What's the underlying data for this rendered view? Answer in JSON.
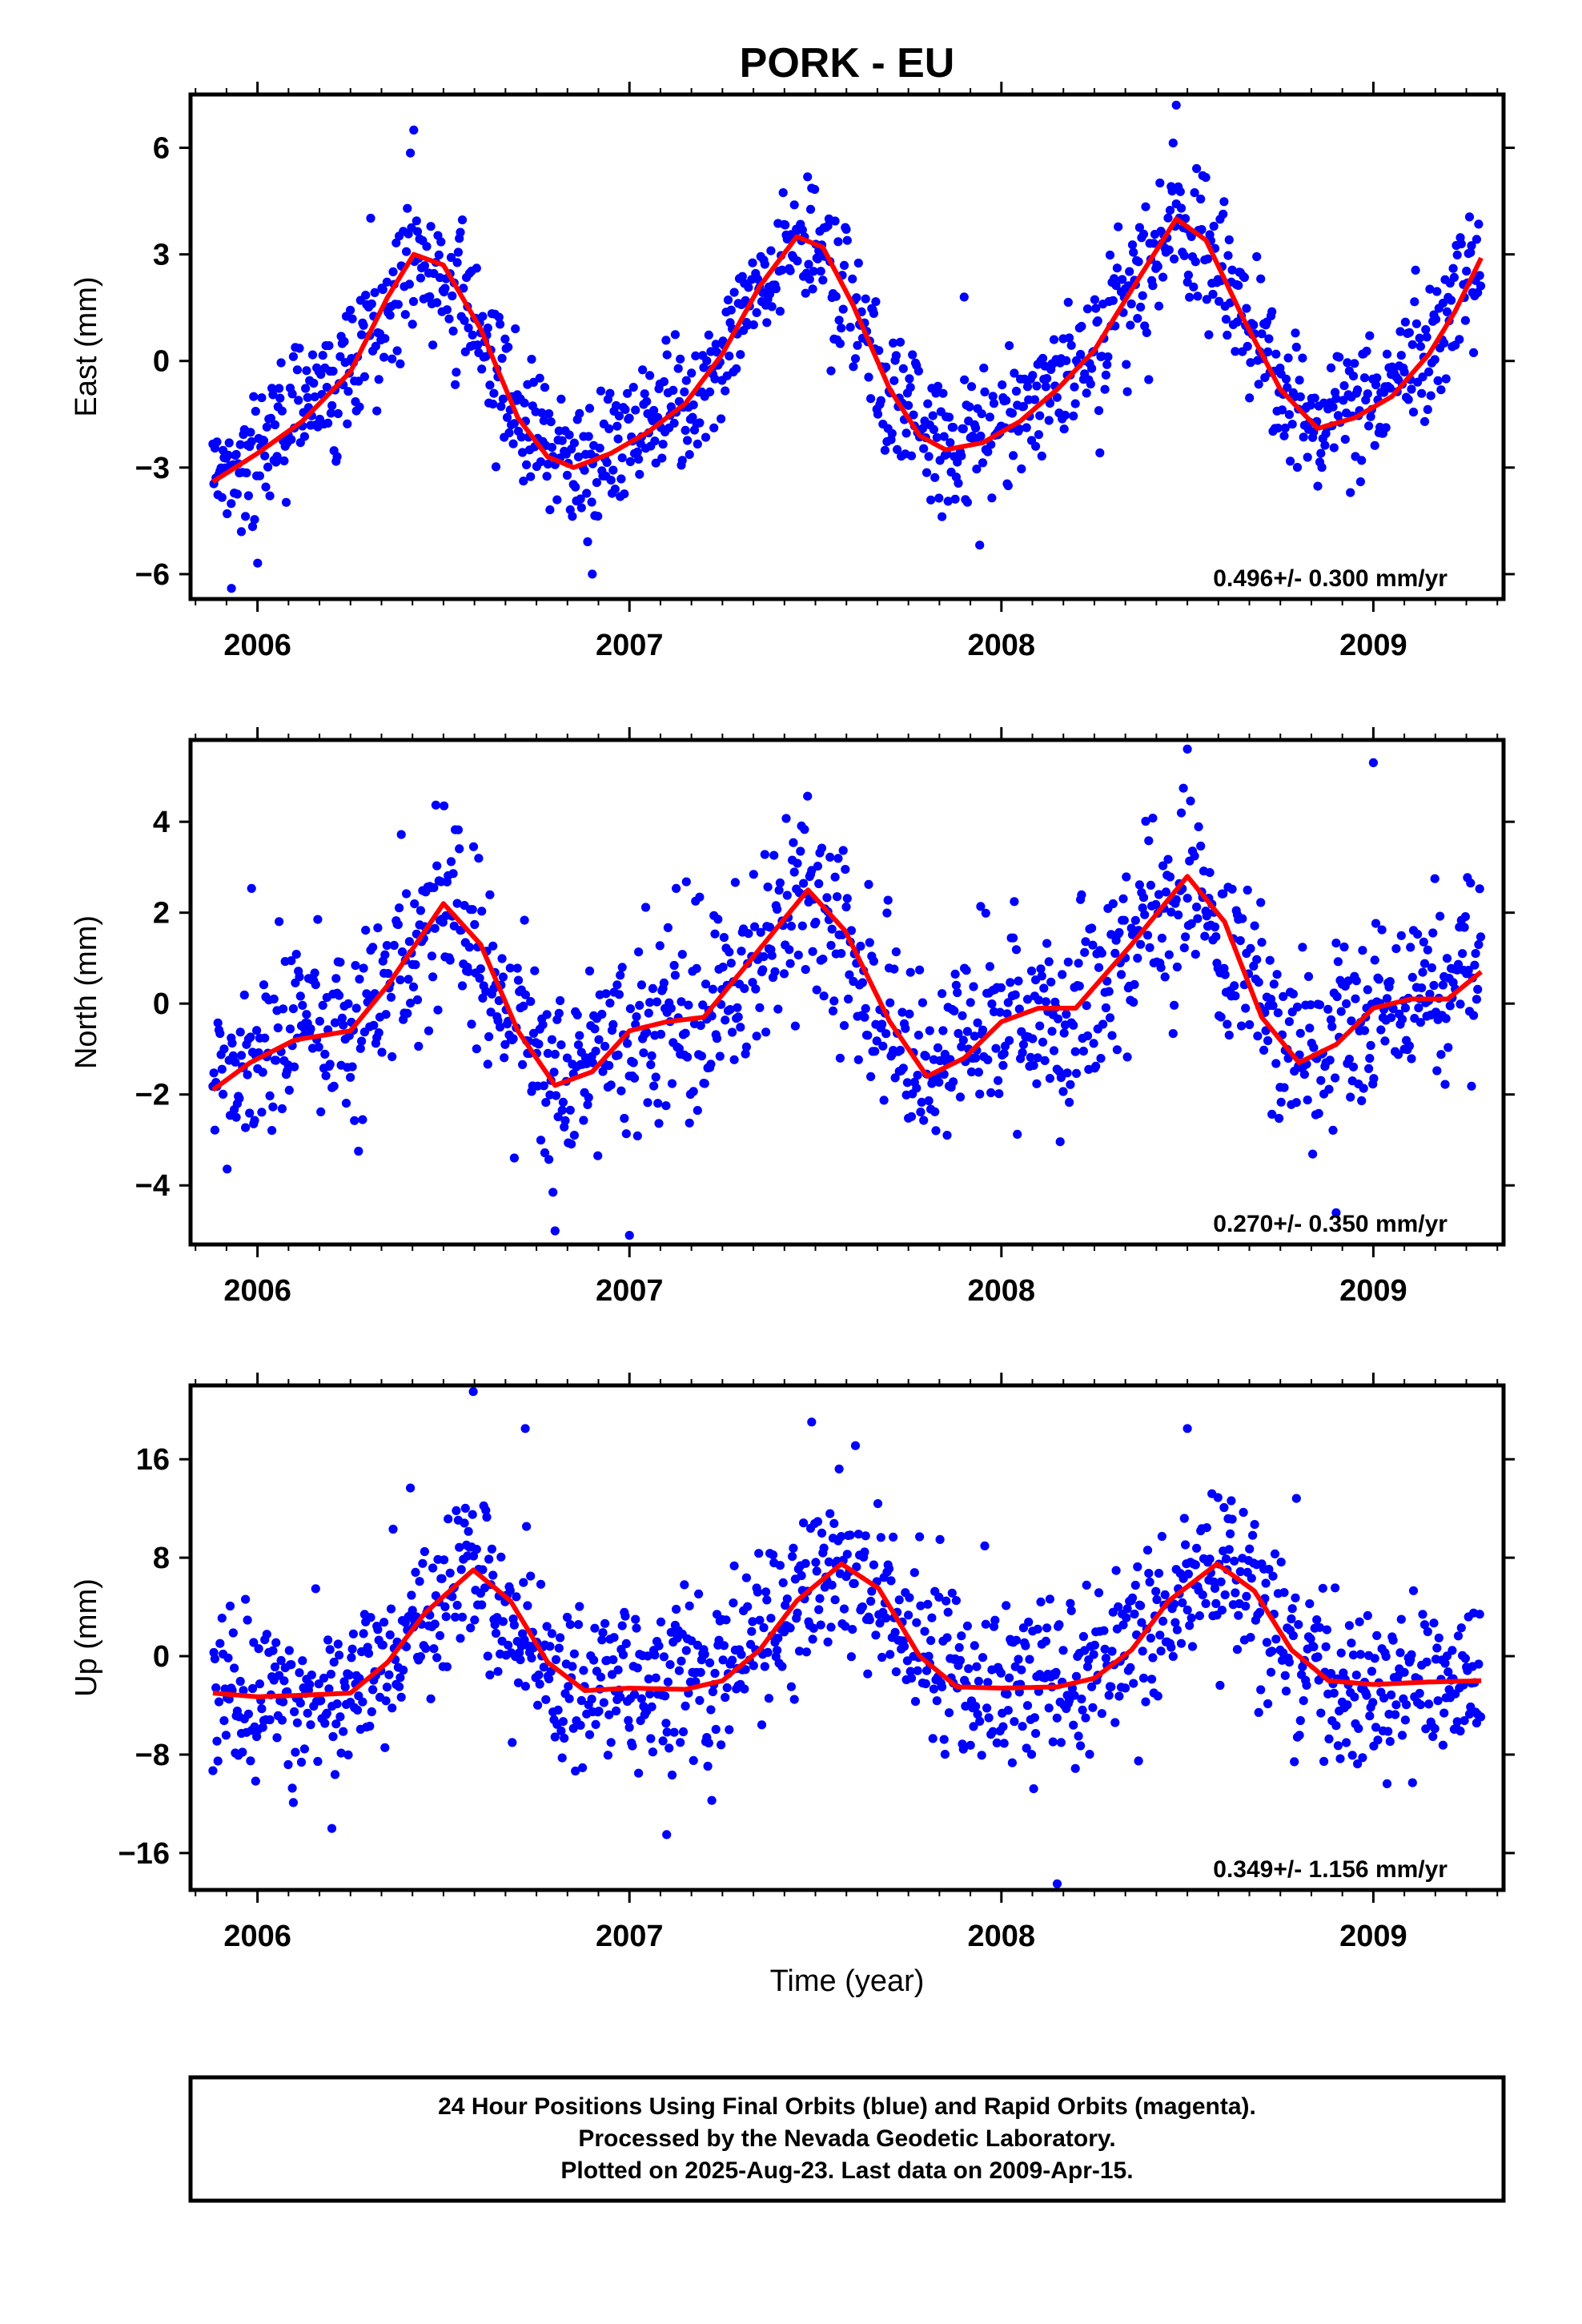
{
  "title": "PORK - EU",
  "xlabel": "Time (year)",
  "footer": {
    "lines": [
      "24 Hour Positions Using Final Orbits (blue) and Rapid Orbits (magenta).",
      "Processed by the Nevada Geodetic Laboratory.",
      "Plotted on 2025-Aug-23. Last data on 2009-Apr-15."
    ]
  },
  "colors": {
    "points": "#0000ff",
    "fit": "#ff0000",
    "frame": "#000000"
  },
  "chart_data": [
    {
      "type": "scatter",
      "ylabel": "East (mm)",
      "rate": "0.496+/- 0.300 mm/yr",
      "xlim": [
        2005.82,
        2009.35
      ],
      "ylim": [
        -6.7,
        7.5
      ],
      "yticks": [
        -6,
        -3,
        0,
        3,
        6
      ],
      "xticks": [
        2006,
        2007,
        2008,
        2009
      ],
      "data_range": [
        2005.88,
        2009.29
      ],
      "mean": [
        [
          2005.88,
          -3.4
        ],
        [
          2006.0,
          -2.6
        ],
        [
          2006.25,
          -0.3
        ],
        [
          2006.42,
          3.0
        ],
        [
          2006.55,
          1.8
        ],
        [
          2006.7,
          -1.6
        ],
        [
          2006.85,
          -3.0
        ],
        [
          2007.0,
          -2.2
        ],
        [
          2007.2,
          -0.8
        ],
        [
          2007.32,
          1.5
        ],
        [
          2007.45,
          3.5
        ],
        [
          2007.55,
          2.6
        ],
        [
          2007.7,
          -0.8
        ],
        [
          2007.85,
          -2.5
        ],
        [
          2008.0,
          -2.0
        ],
        [
          2008.15,
          -0.8
        ],
        [
          2008.3,
          1.0
        ],
        [
          2008.47,
          4.0
        ],
        [
          2008.6,
          2.5
        ],
        [
          2008.75,
          -0.8
        ],
        [
          2008.85,
          -1.9
        ],
        [
          2009.0,
          -1.3
        ],
        [
          2009.15,
          0.2
        ],
        [
          2009.29,
          2.9
        ]
      ],
      "scatter_sd": 1.0,
      "outliers": [
        [
          2006.42,
          6.5
        ],
        [
          2008.47,
          7.2
        ],
        [
          2005.93,
          -6.4
        ],
        [
          2006.9,
          -6.0
        ],
        [
          2007.9,
          1.8
        ]
      ],
      "fit": [
        [
          2005.88,
          -3.4
        ],
        [
          2006.0,
          -2.6
        ],
        [
          2006.12,
          -1.7
        ],
        [
          2006.25,
          -0.3
        ],
        [
          2006.35,
          1.8
        ],
        [
          2006.42,
          3.0
        ],
        [
          2006.5,
          2.7
        ],
        [
          2006.6,
          0.9
        ],
        [
          2006.7,
          -1.6
        ],
        [
          2006.78,
          -2.7
        ],
        [
          2006.85,
          -3.0
        ],
        [
          2006.95,
          -2.6
        ],
        [
          2007.05,
          -2.0
        ],
        [
          2007.15,
          -1.2
        ],
        [
          2007.25,
          0.2
        ],
        [
          2007.35,
          2.1
        ],
        [
          2007.45,
          3.5
        ],
        [
          2007.52,
          3.2
        ],
        [
          2007.6,
          1.6
        ],
        [
          2007.7,
          -0.8
        ],
        [
          2007.78,
          -2.1
        ],
        [
          2007.85,
          -2.5
        ],
        [
          2007.95,
          -2.3
        ],
        [
          2008.05,
          -1.7
        ],
        [
          2008.15,
          -0.8
        ],
        [
          2008.25,
          0.3
        ],
        [
          2008.35,
          2.0
        ],
        [
          2008.47,
          4.0
        ],
        [
          2008.55,
          3.4
        ],
        [
          2008.65,
          1.2
        ],
        [
          2008.75,
          -0.8
        ],
        [
          2008.85,
          -1.9
        ],
        [
          2008.95,
          -1.6
        ],
        [
          2009.05,
          -1.0
        ],
        [
          2009.15,
          0.2
        ],
        [
          2009.22,
          1.4
        ],
        [
          2009.29,
          2.9
        ]
      ]
    },
    {
      "type": "scatter",
      "ylabel": "North (mm)",
      "rate": "0.270+/- 0.350 mm/yr",
      "xlim": [
        2005.82,
        2009.35
      ],
      "ylim": [
        -5.3,
        5.8
      ],
      "yticks": [
        -4,
        -2,
        0,
        2,
        4
      ],
      "xticks": [
        2006,
        2007,
        2008,
        2009
      ],
      "data_range": [
        2005.88,
        2009.29
      ],
      "mean": [
        [
          2005.88,
          -1.9
        ],
        [
          2006.1,
          -0.8
        ],
        [
          2006.25,
          -0.5
        ],
        [
          2006.5,
          2.2
        ],
        [
          2006.8,
          -1.8
        ],
        [
          2007.0,
          -0.6
        ],
        [
          2007.2,
          -0.3
        ],
        [
          2007.48,
          2.5
        ],
        [
          2007.8,
          -1.6
        ],
        [
          2008.0,
          -0.3
        ],
        [
          2008.2,
          -0.1
        ],
        [
          2008.5,
          2.8
        ],
        [
          2008.8,
          -1.3
        ],
        [
          2009.0,
          0.0
        ],
        [
          2009.29,
          0.7
        ]
      ],
      "scatter_sd": 1.05,
      "outliers": [
        [
          2008.5,
          5.6
        ],
        [
          2009.0,
          5.3
        ],
        [
          2006.8,
          -5.0
        ],
        [
          2007.0,
          -5.1
        ],
        [
          2008.9,
          -4.6
        ]
      ],
      "fit": [
        [
          2005.88,
          -1.9
        ],
        [
          2005.98,
          -1.3
        ],
        [
          2006.1,
          -0.8
        ],
        [
          2006.25,
          -0.6
        ],
        [
          2006.35,
          0.4
        ],
        [
          2006.5,
          2.2
        ],
        [
          2006.6,
          1.3
        ],
        [
          2006.7,
          -0.6
        ],
        [
          2006.8,
          -1.8
        ],
        [
          2006.9,
          -1.5
        ],
        [
          2007.0,
          -0.6
        ],
        [
          2007.1,
          -0.4
        ],
        [
          2007.2,
          -0.3
        ],
        [
          2007.35,
          1.2
        ],
        [
          2007.48,
          2.5
        ],
        [
          2007.58,
          1.6
        ],
        [
          2007.7,
          -0.4
        ],
        [
          2007.8,
          -1.6
        ],
        [
          2007.9,
          -1.2
        ],
        [
          2008.0,
          -0.4
        ],
        [
          2008.1,
          -0.1
        ],
        [
          2008.2,
          -0.1
        ],
        [
          2008.35,
          1.3
        ],
        [
          2008.5,
          2.8
        ],
        [
          2008.6,
          1.8
        ],
        [
          2008.7,
          -0.3
        ],
        [
          2008.8,
          -1.3
        ],
        [
          2008.9,
          -0.9
        ],
        [
          2009.0,
          -0.1
        ],
        [
          2009.1,
          0.1
        ],
        [
          2009.2,
          0.1
        ],
        [
          2009.29,
          0.7
        ]
      ]
    },
    {
      "type": "scatter",
      "ylabel": "Up (mm)",
      "rate": "0.349+/- 1.156 mm/yr",
      "xlim": [
        2005.82,
        2009.35
      ],
      "ylim": [
        -19,
        22
      ],
      "yticks": [
        -16,
        -8,
        0,
        8,
        16
      ],
      "xticks": [
        2006,
        2007,
        2008,
        2009
      ],
      "data_range": [
        2005.88,
        2009.29
      ],
      "mean": [
        [
          2005.88,
          -3.0
        ],
        [
          2006.1,
          -3.2
        ],
        [
          2006.25,
          -2.8
        ],
        [
          2006.4,
          2.0
        ],
        [
          2006.58,
          7.0
        ],
        [
          2006.8,
          -2.8
        ],
        [
          2007.0,
          -2.5
        ],
        [
          2007.2,
          -2.5
        ],
        [
          2007.4,
          3.0
        ],
        [
          2007.57,
          7.5
        ],
        [
          2007.9,
          -2.5
        ],
        [
          2008.2,
          -2.5
        ],
        [
          2008.4,
          3.0
        ],
        [
          2008.58,
          7.5
        ],
        [
          2008.9,
          -2.3
        ],
        [
          2009.29,
          -2.0
        ]
      ],
      "scatter_sd": 3.4,
      "outliers": [
        [
          2006.58,
          21.5
        ],
        [
          2006.72,
          18.5
        ],
        [
          2008.5,
          18.5
        ],
        [
          2008.15,
          -18.5
        ],
        [
          2006.2,
          -14
        ],
        [
          2007.1,
          -14.5
        ]
      ],
      "fit": [
        [
          2005.88,
          -3.0
        ],
        [
          2006.0,
          -3.3
        ],
        [
          2006.1,
          -3.2
        ],
        [
          2006.25,
          -3.0
        ],
        [
          2006.35,
          -0.5
        ],
        [
          2006.45,
          3.5
        ],
        [
          2006.58,
          7.0
        ],
        [
          2006.68,
          4.5
        ],
        [
          2006.78,
          -0.5
        ],
        [
          2006.88,
          -2.8
        ],
        [
          2007.0,
          -2.6
        ],
        [
          2007.15,
          -2.7
        ],
        [
          2007.25,
          -2.0
        ],
        [
          2007.35,
          0.5
        ],
        [
          2007.45,
          4.5
        ],
        [
          2007.57,
          7.5
        ],
        [
          2007.67,
          5.5
        ],
        [
          2007.78,
          0.0
        ],
        [
          2007.88,
          -2.5
        ],
        [
          2008.0,
          -2.6
        ],
        [
          2008.15,
          -2.5
        ],
        [
          2008.25,
          -1.8
        ],
        [
          2008.35,
          0.5
        ],
        [
          2008.45,
          4.5
        ],
        [
          2008.58,
          7.5
        ],
        [
          2008.68,
          5.3
        ],
        [
          2008.78,
          0.5
        ],
        [
          2008.88,
          -2.0
        ],
        [
          2009.0,
          -2.3
        ],
        [
          2009.15,
          -2.1
        ],
        [
          2009.29,
          -2.0
        ]
      ]
    }
  ]
}
